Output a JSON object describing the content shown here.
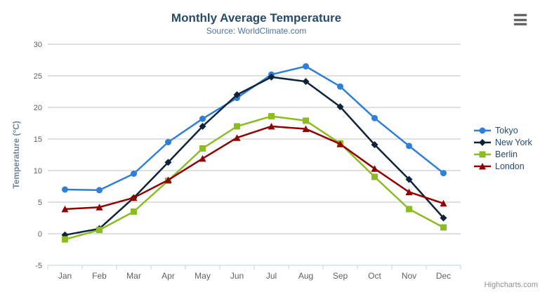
{
  "chart_data": {
    "type": "line",
    "title": "Monthly Average Temperature",
    "subtitle": "Source: WorldClimate.com",
    "xlabel": "",
    "ylabel": "Temperature (°C)",
    "ylim": [
      -5,
      30
    ],
    "ytick_step": 5,
    "grid": true,
    "legend_position": "right",
    "categories": [
      "Jan",
      "Feb",
      "Mar",
      "Apr",
      "May",
      "Jun",
      "Jul",
      "Aug",
      "Sep",
      "Oct",
      "Nov",
      "Dec"
    ],
    "series": [
      {
        "name": "Tokyo",
        "color": "#2f7ed8",
        "marker": "circle",
        "values": [
          7.0,
          6.9,
          9.5,
          14.5,
          18.2,
          21.5,
          25.2,
          26.5,
          23.3,
          18.3,
          13.9,
          9.6
        ]
      },
      {
        "name": "New York",
        "color": "#0d233a",
        "marker": "diamond",
        "values": [
          -0.2,
          0.8,
          5.7,
          11.3,
          17.0,
          22.0,
          24.8,
          24.1,
          20.1,
          14.1,
          8.6,
          2.5
        ]
      },
      {
        "name": "Berlin",
        "color": "#8bbc21",
        "marker": "square",
        "values": [
          -0.9,
          0.6,
          3.5,
          8.4,
          13.5,
          17.0,
          18.6,
          17.9,
          14.3,
          9.0,
          3.9,
          1.0
        ]
      },
      {
        "name": "London",
        "color": "#910000",
        "marker": "triangle",
        "values": [
          3.9,
          4.2,
          5.7,
          8.5,
          11.9,
          15.2,
          17.0,
          16.6,
          14.2,
          10.3,
          6.6,
          4.8
        ]
      }
    ],
    "styles": {
      "grid_color": "#c0c0c0",
      "axis_line_color": "#c0d0e0",
      "tick_label_color": "#606060",
      "axis_title_color": "#6d869f",
      "title_color": "#274b6d",
      "subtitle_color": "#4d759e"
    }
  },
  "credits": {
    "label": "Highcharts.com"
  },
  "icons": {
    "export_menu": "hamburger-menu-icon"
  }
}
